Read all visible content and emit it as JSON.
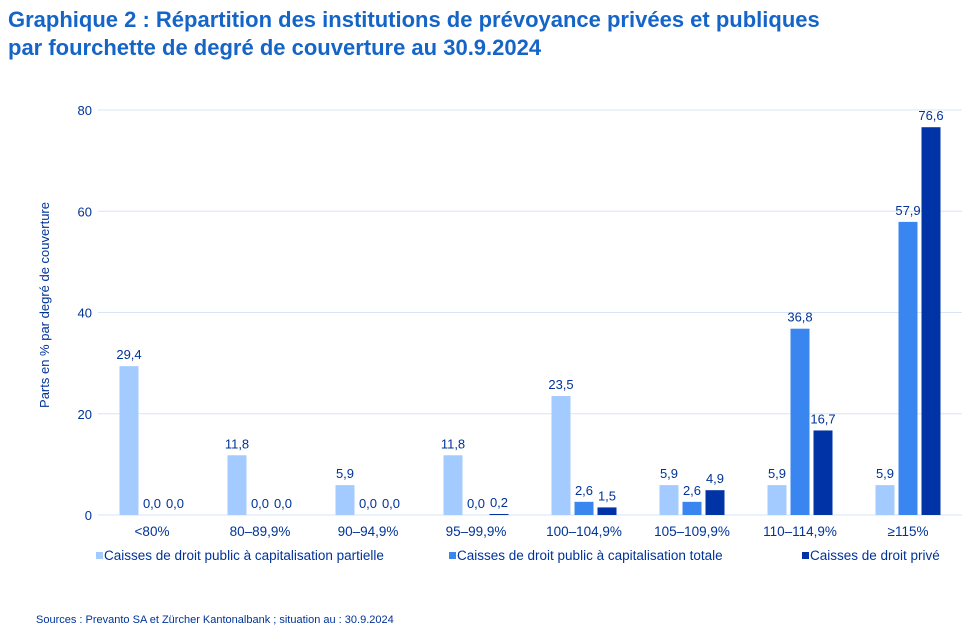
{
  "title_line1": "Graphique 2 : Répartition des institutions de prévoyance privées et publiques",
  "title_line2": "par fourchette de degré de couverture au 30.9.2024",
  "source": "Sources : Prevanto SA et Zürcher Kantonalbank ; situation au : 30.9.2024",
  "colors": {
    "partielle": "#a3cbff",
    "totale": "#3a86f0",
    "prive": "#0033a6",
    "grid": "#d6e6f7",
    "text": "#003399"
  },
  "chart_data": {
    "type": "bar",
    "title": "Répartition des institutions de prévoyance privées et publiques par fourchette de degré de couverture au 30.9.2024",
    "xlabel": "",
    "ylabel": "Parts en % par degré de couverture",
    "ylim": [
      0,
      80
    ],
    "yticks": [
      0,
      20,
      40,
      60,
      80
    ],
    "grid": true,
    "legend_position": "bottom",
    "categories": [
      "<80%",
      "80–89,9%",
      "90–94,9%",
      "95–99,9%",
      "100–104,9%",
      "105–109,9%",
      "110–114,9%",
      "≥115%"
    ],
    "series": [
      {
        "name": "Caisses de droit public à capitalisation partielle",
        "values": [
          29.4,
          11.8,
          5.9,
          11.8,
          23.5,
          5.9,
          5.9,
          5.9
        ],
        "labels": [
          "29,4",
          "11,8",
          "5,9",
          "11,8",
          "23,5",
          "5,9",
          "5,9",
          "5,9"
        ]
      },
      {
        "name": "Caisses de droit public à capitalisation totale",
        "values": [
          0.0,
          0.0,
          0.0,
          0.0,
          2.6,
          2.6,
          36.8,
          57.9
        ],
        "labels": [
          "0,0",
          "0,0",
          "0,0",
          "0,0",
          "2,6",
          "2,6",
          "36,8",
          "57,9"
        ]
      },
      {
        "name": "Caisses de droit privé",
        "values": [
          0.0,
          0.0,
          0.0,
          0.2,
          1.5,
          4.9,
          16.7,
          76.6
        ],
        "labels": [
          "0,0",
          "0,0",
          "0,0",
          "0,2",
          "1,5",
          "4,9",
          "16,7",
          "76,6"
        ]
      }
    ]
  }
}
